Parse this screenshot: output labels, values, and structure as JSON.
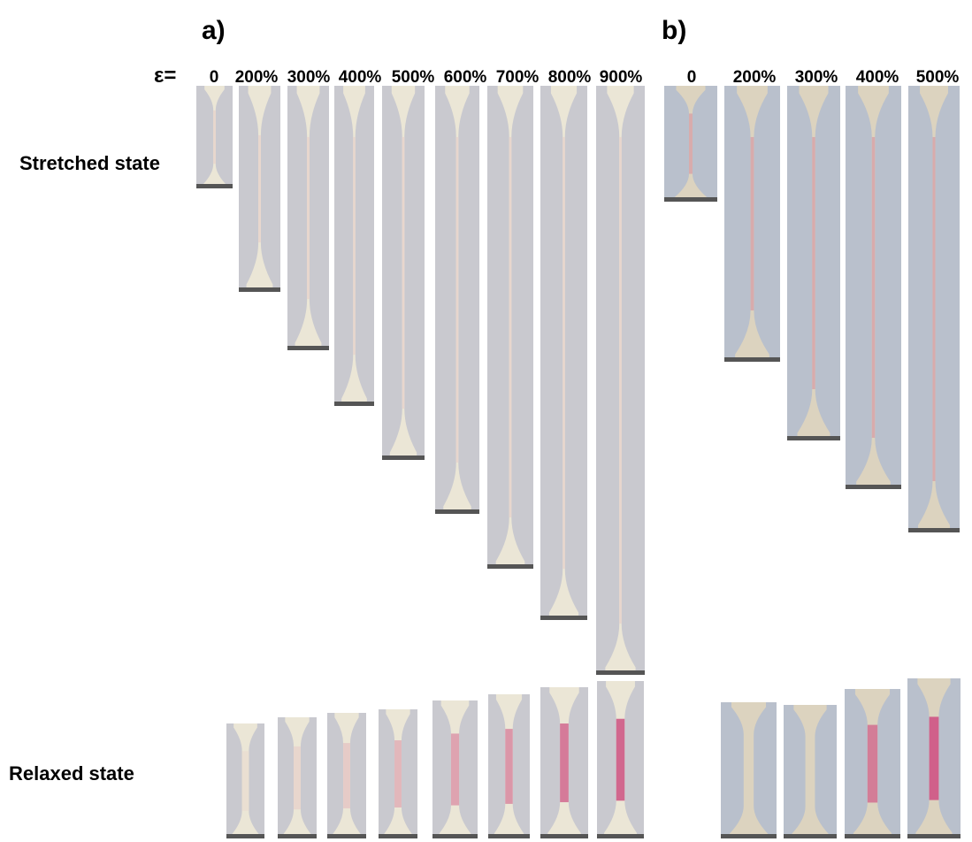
{
  "panels": [
    {
      "label": "a)",
      "strain_symbol": "ε=",
      "strains": [
        "0",
        "200%",
        "300%",
        "400%",
        "500%",
        "600%",
        "700%",
        "800%",
        "900%"
      ],
      "relaxed_tint": [
        0.05,
        0.12,
        0.2,
        0.35,
        0.5,
        0.6,
        0.8,
        0.95
      ]
    },
    {
      "label": "b)",
      "strains": [
        "0",
        "200%",
        "300%",
        "400%",
        "500%"
      ],
      "relaxed_tint": [
        0.0,
        0.0,
        0.75,
        1.0
      ]
    }
  ],
  "rows": {
    "stretched": "Stretched state",
    "relaxed": "Relaxed state"
  },
  "colors": {
    "background_a": "#c9c9cf",
    "background_b": "#b9c0cc",
    "specimen_a": "#ebe6d6",
    "specimen_b": "#dcd3bf",
    "pink": "#d0608a",
    "clamp": "#555555"
  }
}
